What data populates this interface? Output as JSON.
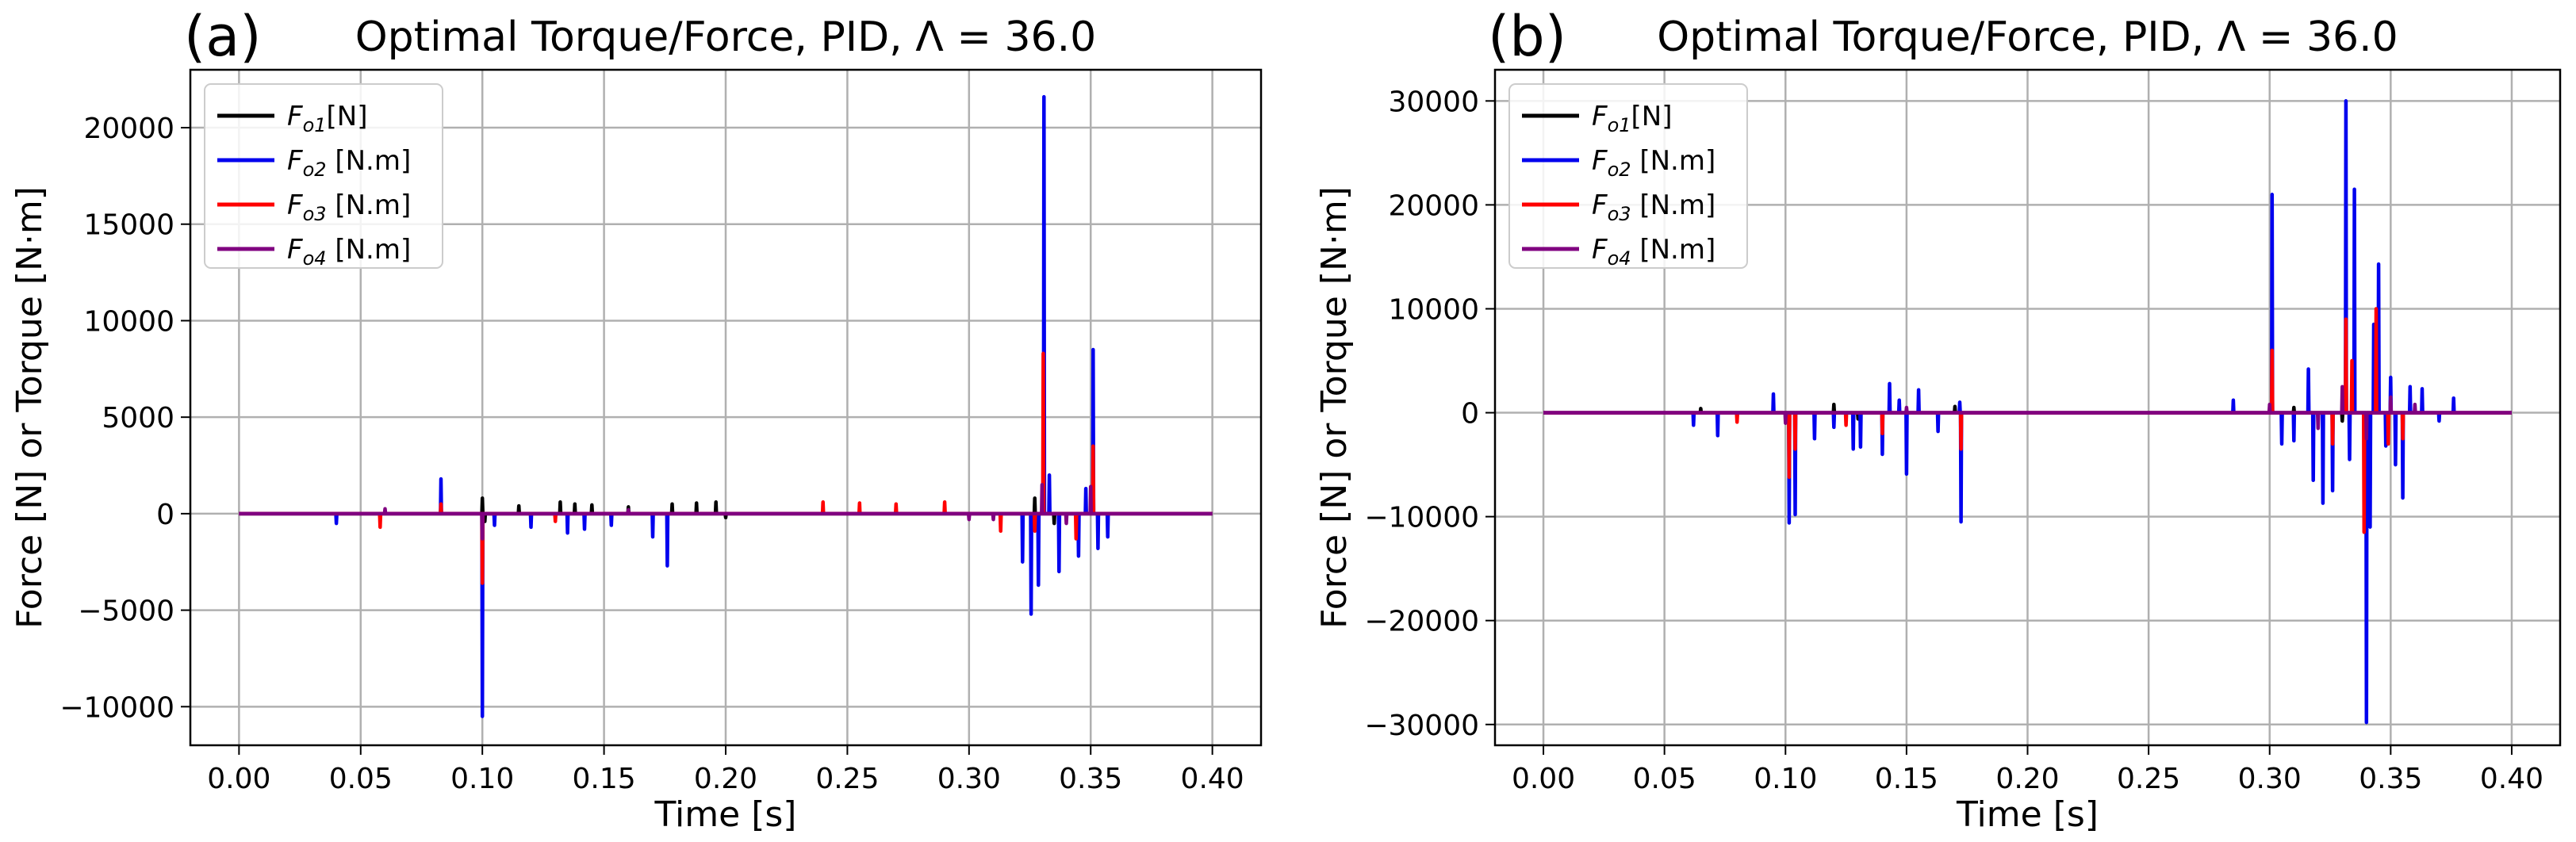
{
  "chart_data": [
    {
      "type": "line",
      "panel_tag": "(a)",
      "title": "Optimal Torque/Force, PID, Λ = 36.0",
      "xlabel": "Time [s]",
      "ylabel": "Force  [N] or Torque [N·m]",
      "xlim": [
        -0.02,
        0.42
      ],
      "ylim": [
        -12000,
        23000
      ],
      "xticks": [
        0.0,
        0.05,
        0.1,
        0.15,
        0.2,
        0.25,
        0.3,
        0.35,
        0.4
      ],
      "xtick_labels": [
        "0.00",
        "0.05",
        "0.10",
        "0.15",
        "0.20",
        "0.25",
        "0.30",
        "0.35",
        "0.40"
      ],
      "yticks": [
        -10000,
        -5000,
        0,
        5000,
        10000,
        15000,
        20000
      ],
      "ytick_labels": [
        "−10000",
        "−5000",
        "0",
        "5000",
        "10000",
        "15000",
        "20000"
      ],
      "grid": true,
      "legend_position": "top-left",
      "series": [
        {
          "name": "F_o1[N]",
          "sub": "o1",
          "unit": "[N]",
          "color": "#000000",
          "spikes": [
            [
              0.1,
              800
            ],
            [
              0.101,
              -400
            ],
            [
              0.115,
              400
            ],
            [
              0.132,
              600
            ],
            [
              0.138,
              500
            ],
            [
              0.145,
              450
            ],
            [
              0.16,
              350
            ],
            [
              0.178,
              500
            ],
            [
              0.188,
              550
            ],
            [
              0.196,
              600
            ],
            [
              0.2,
              -200
            ],
            [
              0.327,
              800
            ],
            [
              0.335,
              -500
            ]
          ]
        },
        {
          "name": "F_o2 [N.m]",
          "sub": "o2",
          "unit": "[N.m]",
          "color": "#0000ee",
          "spikes": [
            [
              0.04,
              -500
            ],
            [
              0.083,
              1800
            ],
            [
              0.1,
              -10500
            ],
            [
              0.105,
              -600
            ],
            [
              0.12,
              -700
            ],
            [
              0.135,
              -1000
            ],
            [
              0.142,
              -800
            ],
            [
              0.153,
              -600
            ],
            [
              0.17,
              -1200
            ],
            [
              0.176,
              -2700
            ],
            [
              0.322,
              -2500
            ],
            [
              0.3255,
              -5200
            ],
            [
              0.3285,
              -3700
            ],
            [
              0.3308,
              21600
            ],
            [
              0.333,
              2000
            ],
            [
              0.337,
              -3000
            ],
            [
              0.345,
              -2200
            ],
            [
              0.348,
              1300
            ],
            [
              0.351,
              8500
            ],
            [
              0.353,
              -1800
            ],
            [
              0.357,
              -1200
            ]
          ]
        },
        {
          "name": "F_o3 [N.m]",
          "sub": "o3",
          "unit": "[N.m]",
          "color": "#ff0000",
          "spikes": [
            [
              0.058,
              -700
            ],
            [
              0.083,
              500
            ],
            [
              0.1,
              -3600
            ],
            [
              0.13,
              -400
            ],
            [
              0.24,
              600
            ],
            [
              0.255,
              550
            ],
            [
              0.27,
              500
            ],
            [
              0.29,
              600
            ],
            [
              0.313,
              -900
            ],
            [
              0.3305,
              8300
            ],
            [
              0.327,
              -900
            ],
            [
              0.344,
              -1300
            ],
            [
              0.351,
              3500
            ]
          ]
        },
        {
          "name": "F_o4 [N.m]",
          "sub": "o4",
          "unit": "[N.m]",
          "color": "#800080",
          "spikes": [
            [
              0.06,
              250
            ],
            [
              0.1,
              -1300
            ],
            [
              0.16,
              200
            ],
            [
              0.3,
              -300
            ],
            [
              0.31,
              -300
            ],
            [
              0.33,
              1500
            ],
            [
              0.34,
              -500
            ],
            [
              0.35,
              1400
            ]
          ]
        }
      ]
    },
    {
      "type": "line",
      "panel_tag": "(b)",
      "title": "Optimal Torque/Force, PID, Λ = 36.0",
      "xlabel": "Time [s]",
      "ylabel": "Force  [N] or Torque [N·m]",
      "xlim": [
        -0.02,
        0.42
      ],
      "ylim": [
        -32000,
        33000
      ],
      "xticks": [
        0.0,
        0.05,
        0.1,
        0.15,
        0.2,
        0.25,
        0.3,
        0.35,
        0.4
      ],
      "xtick_labels": [
        "0.00",
        "0.05",
        "0.10",
        "0.15",
        "0.20",
        "0.25",
        "0.30",
        "0.35",
        "0.40"
      ],
      "yticks": [
        -30000,
        -20000,
        -10000,
        0,
        10000,
        20000,
        30000
      ],
      "ytick_labels": [
        "−30000",
        "−20000",
        "−10000",
        "0",
        "10000",
        "20000",
        "30000"
      ],
      "grid": true,
      "legend_position": "top-left",
      "series": [
        {
          "name": "F_o1[N]",
          "sub": "o1",
          "unit": "[N]",
          "color": "#000000",
          "spikes": [
            [
              0.065,
              400
            ],
            [
              0.12,
              800
            ],
            [
              0.13,
              -600
            ],
            [
              0.17,
              600
            ],
            [
              0.31,
              500
            ],
            [
              0.33,
              -800
            ]
          ]
        },
        {
          "name": "F_o2 [N.m]",
          "sub": "o2",
          "unit": "[N.m]",
          "color": "#0000ee",
          "spikes": [
            [
              0.062,
              -1200
            ],
            [
              0.072,
              -2200
            ],
            [
              0.095,
              1800
            ],
            [
              0.1015,
              -10600
            ],
            [
              0.104,
              -9800
            ],
            [
              0.112,
              -2500
            ],
            [
              0.12,
              -1400
            ],
            [
              0.128,
              -3500
            ],
            [
              0.131,
              -3300
            ],
            [
              0.14,
              -4000
            ],
            [
              0.143,
              2800
            ],
            [
              0.147,
              1200
            ],
            [
              0.15,
              -5900
            ],
            [
              0.155,
              2200
            ],
            [
              0.163,
              -1800
            ],
            [
              0.1725,
              -10500
            ],
            [
              0.172,
              1000
            ],
            [
              0.285,
              1200
            ],
            [
              0.301,
              21000
            ],
            [
              0.305,
              -3000
            ],
            [
              0.31,
              -2700
            ],
            [
              0.316,
              4200
            ],
            [
              0.318,
              -6500
            ],
            [
              0.322,
              -8700
            ],
            [
              0.326,
              -7500
            ],
            [
              0.3315,
              30000
            ],
            [
              0.333,
              -4500
            ],
            [
              0.335,
              21500
            ],
            [
              0.34,
              -29800
            ],
            [
              0.3415,
              -11000
            ],
            [
              0.343,
              8500
            ],
            [
              0.345,
              14300
            ],
            [
              0.348,
              -3200
            ],
            [
              0.35,
              3400
            ],
            [
              0.352,
              -5000
            ],
            [
              0.355,
              -8200
            ],
            [
              0.358,
              2500
            ],
            [
              0.363,
              2300
            ],
            [
              0.37,
              -800
            ],
            [
              0.376,
              1400
            ]
          ]
        },
        {
          "name": "F_o3 [N.m]",
          "sub": "o3",
          "unit": "[N.m]",
          "color": "#ff0000",
          "spikes": [
            [
              0.08,
              -900
            ],
            [
              0.1015,
              -6200
            ],
            [
              0.104,
              -3500
            ],
            [
              0.125,
              -1200
            ],
            [
              0.14,
              -2000
            ],
            [
              0.1725,
              -3500
            ],
            [
              0.301,
              6000
            ],
            [
              0.326,
              -3000
            ],
            [
              0.3315,
              9000
            ],
            [
              0.334,
              5000
            ],
            [
              0.339,
              -11500
            ],
            [
              0.344,
              10000
            ],
            [
              0.349,
              -3000
            ],
            [
              0.355,
              -2500
            ]
          ]
        },
        {
          "name": "F_o4 [N.m]",
          "sub": "o4",
          "unit": "[N.m]",
          "color": "#800080",
          "spikes": [
            [
              0.1,
              -1000
            ],
            [
              0.15,
              500
            ],
            [
              0.3,
              800
            ],
            [
              0.32,
              -1500
            ],
            [
              0.33,
              2500
            ],
            [
              0.34,
              -2500
            ],
            [
              0.35,
              1500
            ],
            [
              0.36,
              800
            ]
          ]
        }
      ]
    }
  ]
}
